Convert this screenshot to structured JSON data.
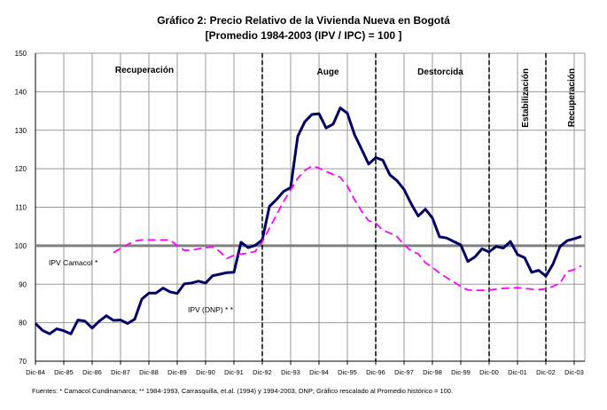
{
  "chart_data": {
    "type": "line",
    "title": "Gráfico 2:  Precio Relativo de la Vivienda Nueva en Bogotá",
    "subtitle": "[Promedio 1984-2003 (IPV / IPC) = 100 ]",
    "xlabel": "",
    "ylabel": "",
    "ylim": [
      70,
      150
    ],
    "yticks": [
      70,
      80,
      90,
      100,
      110,
      120,
      130,
      140,
      150
    ],
    "x_unit": "quarters since Dic-84",
    "xtick_labels": [
      "Dic-84",
      "Dic-85",
      "Dic-86",
      "Dic-87",
      "Dic-88",
      "Dic-89",
      "Dic-90",
      "Dic-91",
      "Dic-92",
      "Dic-93",
      "Dic-94",
      "Dic-95",
      "Dic-96",
      "Dic-97",
      "Dic-98",
      "Dic-99",
      "Dic-00",
      "Dic-01",
      "Dic-02",
      "Dic-03"
    ],
    "grid": true,
    "reference_line": 100,
    "phase_dividers": [
      "Dic-92",
      "Dic-96",
      "Dic-00",
      "Dic-02"
    ],
    "phases": [
      {
        "label": "Recuperación",
        "orientation": "horizontal"
      },
      {
        "label": "Auge",
        "orientation": "horizontal"
      },
      {
        "label": "Destorcida",
        "orientation": "horizontal"
      },
      {
        "label": "Estabilización",
        "orientation": "vertical"
      },
      {
        "label": "Recuperación",
        "orientation": "vertical"
      }
    ],
    "series": [
      {
        "name": "IPV (DNP) * *",
        "color": "#000066",
        "style": "solid",
        "start_index": 0,
        "values": [
          79.8,
          78,
          77.1,
          78.4,
          77.9,
          77.1,
          80.7,
          80.4,
          78.6,
          80.4,
          81.8,
          80.6,
          80.7,
          79.8,
          80.9,
          86.1,
          87.7,
          87.7,
          89,
          88,
          87.6,
          90.1,
          90.3,
          90.8,
          90.3,
          92.2,
          92.6,
          93,
          93.1,
          100.9,
          99.5,
          100.1,
          101.5,
          110.2,
          112,
          114.1,
          115.1,
          128.4,
          132.2,
          134.1,
          134.3,
          130.6,
          131.6,
          135.8,
          134.4,
          128.9,
          125.1,
          121.2,
          122.9,
          122.2,
          118.4,
          116.9,
          114.6,
          110.9,
          107.7,
          109.5,
          107.2,
          102.3,
          102,
          101.1,
          100.2,
          95.9,
          97.1,
          99.2,
          98.4,
          99.8,
          99.4,
          101.1,
          97.7,
          96.9,
          93.1,
          93.6,
          92.1,
          95.2,
          99.8,
          101.3,
          101.8,
          102.4
        ]
      },
      {
        "name": "IPV Camacol *",
        "color": "#ff00ff",
        "style": "dashed",
        "start_index": 11,
        "values": [
          98.2,
          99.3,
          100.3,
          101.2,
          101.5,
          101.5,
          101.5,
          101.5,
          101.5,
          100,
          98.8,
          98.8,
          99.2,
          99.5,
          99.7,
          98.5,
          96.7,
          97.5,
          97.8,
          98.1,
          98.5,
          101,
          104.5,
          108,
          111.5,
          114.5,
          117.5,
          119.5,
          120.7,
          120.2,
          119.3,
          118.5,
          117.8,
          115.5,
          112,
          109,
          106.5,
          105.9,
          104,
          103.3,
          102.4,
          100.2,
          98.7,
          97.9,
          95.6,
          94.4,
          92.9,
          91.7,
          90.6,
          89.4,
          88.5,
          88.4,
          88.4,
          88.5,
          88.7,
          88.9,
          89,
          89.1,
          88.9,
          88.7,
          88.6,
          88.8,
          89.4,
          90.3,
          93.3,
          93.8,
          94.8
        ]
      }
    ],
    "source_note": "Fuentes:  *  Camacol Cundinamarca;  **  1984-1993, Carrasquilla, et.al. (1994)  y  1994-2003, DNP;  Gráfico rescalado al Promedio histórico = 100."
  }
}
